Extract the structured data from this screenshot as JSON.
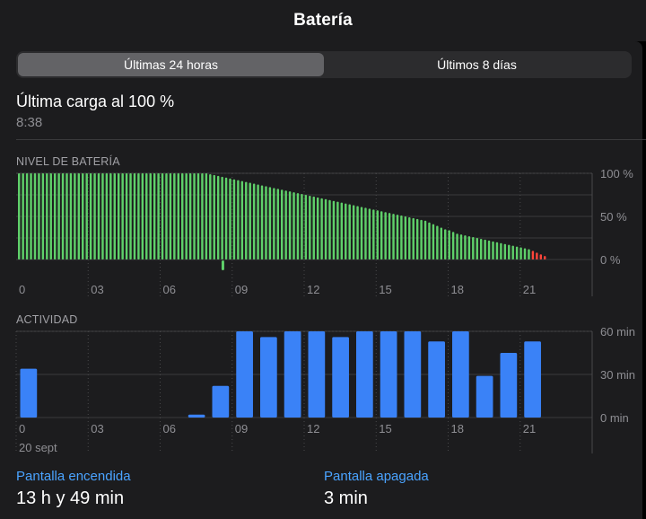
{
  "header": {
    "title": "Batería"
  },
  "segment": {
    "options": [
      "Últimas 24 horas",
      "Últimos 8 días"
    ],
    "selected": 0
  },
  "last_charge": {
    "label": "Última carga al 100 %",
    "time": "8:38"
  },
  "battery_section": {
    "title": "NIVEL DE BATERÍA"
  },
  "activity_section": {
    "title": "ACTIVIDAD",
    "date": "20 sept"
  },
  "colors": {
    "green": "#5fd06a",
    "red": "#ff453a",
    "blue": "#3a82f7",
    "accent_text": "#4aa3ff"
  },
  "chart_data": [
    {
      "type": "bar",
      "title": "NIVEL DE BATERÍA",
      "x_tick_labels": [
        "0",
        "03",
        "06",
        "09",
        "12",
        "15",
        "18",
        "21"
      ],
      "y_tick_labels": [
        "100 %",
        "50 %",
        "0 %"
      ],
      "ylim": [
        0,
        100
      ],
      "x_range_hours": [
        0,
        24
      ],
      "series": [
        {
          "values": [
            100,
            100,
            100,
            100,
            100,
            100,
            100,
            100,
            100,
            100,
            100,
            100,
            100,
            100,
            100,
            100,
            100,
            100,
            100,
            100,
            100,
            100,
            100,
            100,
            100,
            100,
            100,
            100,
            100,
            100,
            100,
            100,
            100,
            100,
            100,
            100,
            100,
            100,
            100,
            100,
            100,
            100,
            100,
            100,
            100,
            100,
            100,
            100,
            99,
            98,
            97,
            96,
            95,
            94,
            93,
            92,
            91,
            90,
            89,
            88,
            87,
            86,
            85,
            84,
            83,
            82,
            81,
            80,
            79,
            78,
            77,
            76,
            75,
            74,
            73,
            72,
            71,
            70,
            69,
            68,
            67,
            66,
            65,
            64,
            63,
            62,
            61,
            60,
            59,
            58,
            57,
            56,
            55,
            54,
            53,
            52,
            51,
            50,
            49,
            48,
            47,
            46,
            45,
            43,
            41,
            39,
            37,
            35,
            34,
            32,
            30,
            29,
            28,
            27,
            26,
            25,
            24,
            23,
            22,
            21,
            20,
            19,
            18,
            17,
            16,
            15,
            14,
            13,
            12,
            10,
            8,
            6,
            4
          ],
          "red_from_index": 129
        }
      ],
      "charging_marker": {
        "time": "8:38"
      }
    },
    {
      "type": "bar",
      "title": "ACTIVIDAD",
      "categories": [
        "0",
        "1",
        "2",
        "3",
        "4",
        "5",
        "6",
        "7",
        "8",
        "9",
        "10",
        "11",
        "12",
        "13",
        "14",
        "15",
        "16",
        "17",
        "18",
        "19",
        "20",
        "21"
      ],
      "x_tick_labels": [
        "0",
        "03",
        "06",
        "09",
        "12",
        "15",
        "18",
        "21"
      ],
      "y_tick_labels": [
        "60 min",
        "30 min",
        "0 min"
      ],
      "ylim": [
        0,
        60
      ],
      "series": [
        {
          "values": [
            34,
            0,
            0,
            0,
            0,
            0,
            0,
            2,
            22,
            60,
            56,
            60,
            60,
            56,
            60,
            60,
            60,
            53,
            60,
            29,
            45,
            53
          ]
        }
      ]
    }
  ],
  "stats": [
    {
      "label": "Pantalla encendida",
      "value": "13 h y 49 min"
    },
    {
      "label": "Pantalla apagada",
      "value": "3 min"
    }
  ]
}
